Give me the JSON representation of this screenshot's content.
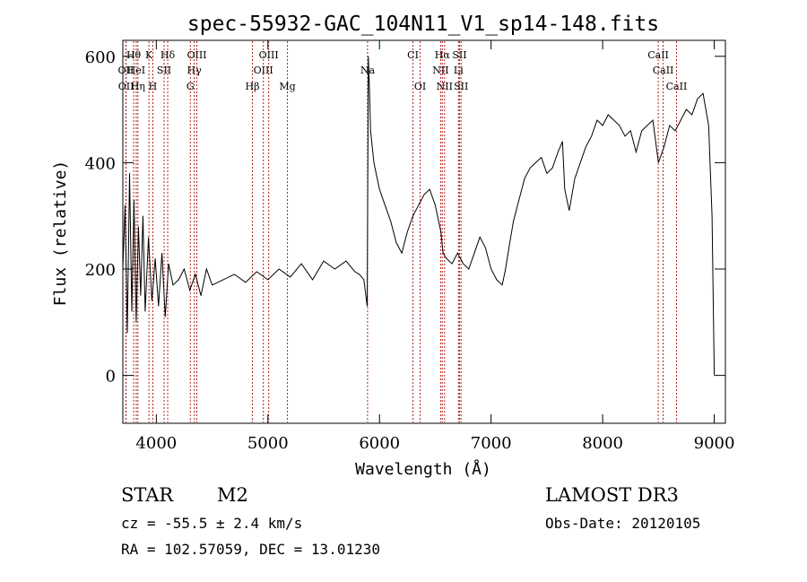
{
  "chart_data": {
    "type": "line",
    "title": "spec-55932-GAC_104N11_V1_sp14-148.fits",
    "xlabel": "Wavelength (Å)",
    "ylabel": "Flux (relative)",
    "xlim": [
      3700,
      9100
    ],
    "ylim": [
      -90,
      630
    ],
    "x_ticks": [
      4000,
      5000,
      6000,
      7000,
      8000,
      9000
    ],
    "y_ticks": [
      0,
      200,
      400,
      600
    ],
    "grid": false,
    "line_color": "#000000",
    "marker_color": "#b22222",
    "spectrum": {
      "name": "flux",
      "x": [
        3700,
        3720,
        3740,
        3760,
        3780,
        3800,
        3820,
        3840,
        3860,
        3880,
        3900,
        3930,
        3960,
        3990,
        4020,
        4050,
        4080,
        4110,
        4150,
        4200,
        4250,
        4300,
        4350,
        4400,
        4450,
        4500,
        4600,
        4700,
        4800,
        4900,
        5000,
        5100,
        5200,
        5300,
        5400,
        5500,
        5600,
        5700,
        5780,
        5820,
        5860,
        5890,
        5900,
        5910,
        5920,
        5950,
        6000,
        6050,
        6100,
        6150,
        6200,
        6250,
        6300,
        6350,
        6400,
        6450,
        6500,
        6550,
        6560,
        6570,
        6600,
        6650,
        6700,
        6750,
        6800,
        6850,
        6900,
        6950,
        7000,
        7050,
        7100,
        7130,
        7160,
        7200,
        7250,
        7300,
        7350,
        7400,
        7450,
        7500,
        7550,
        7600,
        7640,
        7660,
        7700,
        7750,
        7800,
        7850,
        7900,
        7950,
        8000,
        8050,
        8100,
        8150,
        8200,
        8250,
        8300,
        8350,
        8400,
        8450,
        8500,
        8550,
        8600,
        8650,
        8700,
        8750,
        8800,
        8850,
        8900,
        8950,
        8980,
        9000
      ],
      "values": [
        200,
        320,
        80,
        380,
        120,
        330,
        100,
        280,
        150,
        300,
        120,
        260,
        140,
        220,
        130,
        230,
        110,
        210,
        170,
        180,
        200,
        160,
        190,
        150,
        200,
        170,
        180,
        190,
        175,
        195,
        180,
        200,
        185,
        210,
        180,
        215,
        200,
        215,
        195,
        190,
        180,
        130,
        600,
        540,
        460,
        400,
        350,
        320,
        290,
        250,
        230,
        270,
        300,
        320,
        340,
        350,
        320,
        270,
        250,
        230,
        220,
        210,
        230,
        210,
        200,
        230,
        260,
        240,
        200,
        180,
        170,
        200,
        240,
        290,
        330,
        370,
        390,
        400,
        410,
        380,
        390,
        420,
        440,
        350,
        310,
        370,
        400,
        430,
        450,
        480,
        470,
        490,
        480,
        470,
        450,
        460,
        420,
        460,
        470,
        480,
        400,
        430,
        470,
        460,
        480,
        500,
        490,
        520,
        530,
        470,
        300,
        0
      ]
    },
    "line_markers": [
      {
        "label": "Hθ",
        "x": 3797,
        "row": 0
      },
      {
        "label": "K",
        "x": 3934,
        "row": 0
      },
      {
        "label": "Hδ",
        "x": 4102,
        "row": 0
      },
      {
        "label": "OIII",
        "x": 4363,
        "row": 0
      },
      {
        "label": "OIII",
        "x": 5007,
        "row": 0
      },
      {
        "label": "CI",
        "x": 6300,
        "row": 0
      },
      {
        "label": "Hα",
        "x": 6563,
        "row": 0
      },
      {
        "label": "SII",
        "x": 6717,
        "row": 0
      },
      {
        "label": "CaII",
        "x": 8498,
        "row": 0
      },
      {
        "label": "OII",
        "x": 3727,
        "row": 1
      },
      {
        "label": "HeI",
        "x": 3820,
        "row": 1
      },
      {
        "label": "SII",
        "x": 4070,
        "row": 1
      },
      {
        "label": "Hγ",
        "x": 4340,
        "row": 1
      },
      {
        "label": "OIII",
        "x": 4959,
        "row": 1
      },
      {
        "label": "NII",
        "x": 6548,
        "row": 1
      },
      {
        "label": "Li",
        "x": 6708,
        "row": 1
      },
      {
        "label": "CaII",
        "x": 8542,
        "row": 1
      },
      {
        "label": "OII",
        "x": 3729,
        "row": 2
      },
      {
        "label": "Hη",
        "x": 3835,
        "row": 2
      },
      {
        "label": "H",
        "x": 3969,
        "row": 2
      },
      {
        "label": "G",
        "x": 4305,
        "row": 2
      },
      {
        "label": "Hβ",
        "x": 4861,
        "row": 2
      },
      {
        "label": "Mg",
        "x": 5175,
        "row": 2
      },
      {
        "label": "Na",
        "x": 5893,
        "row": 3
      },
      {
        "label": "OI",
        "x": 6364,
        "row": 2
      },
      {
        "label": "NII",
        "x": 6583,
        "row": 2
      },
      {
        "label": "SII",
        "x": 6731,
        "row": 2
      },
      {
        "label": "CaII",
        "x": 8662,
        "row": 2
      }
    ]
  },
  "info": {
    "object_class": "STAR",
    "subclass": "M2",
    "survey": "LAMOST DR3",
    "cz": "cz = -55.5 ± 2.4 km/s",
    "obs_date": "Obs-Date: 20120105",
    "coords": "RA = 102.57059, DEC =  13.01230"
  }
}
